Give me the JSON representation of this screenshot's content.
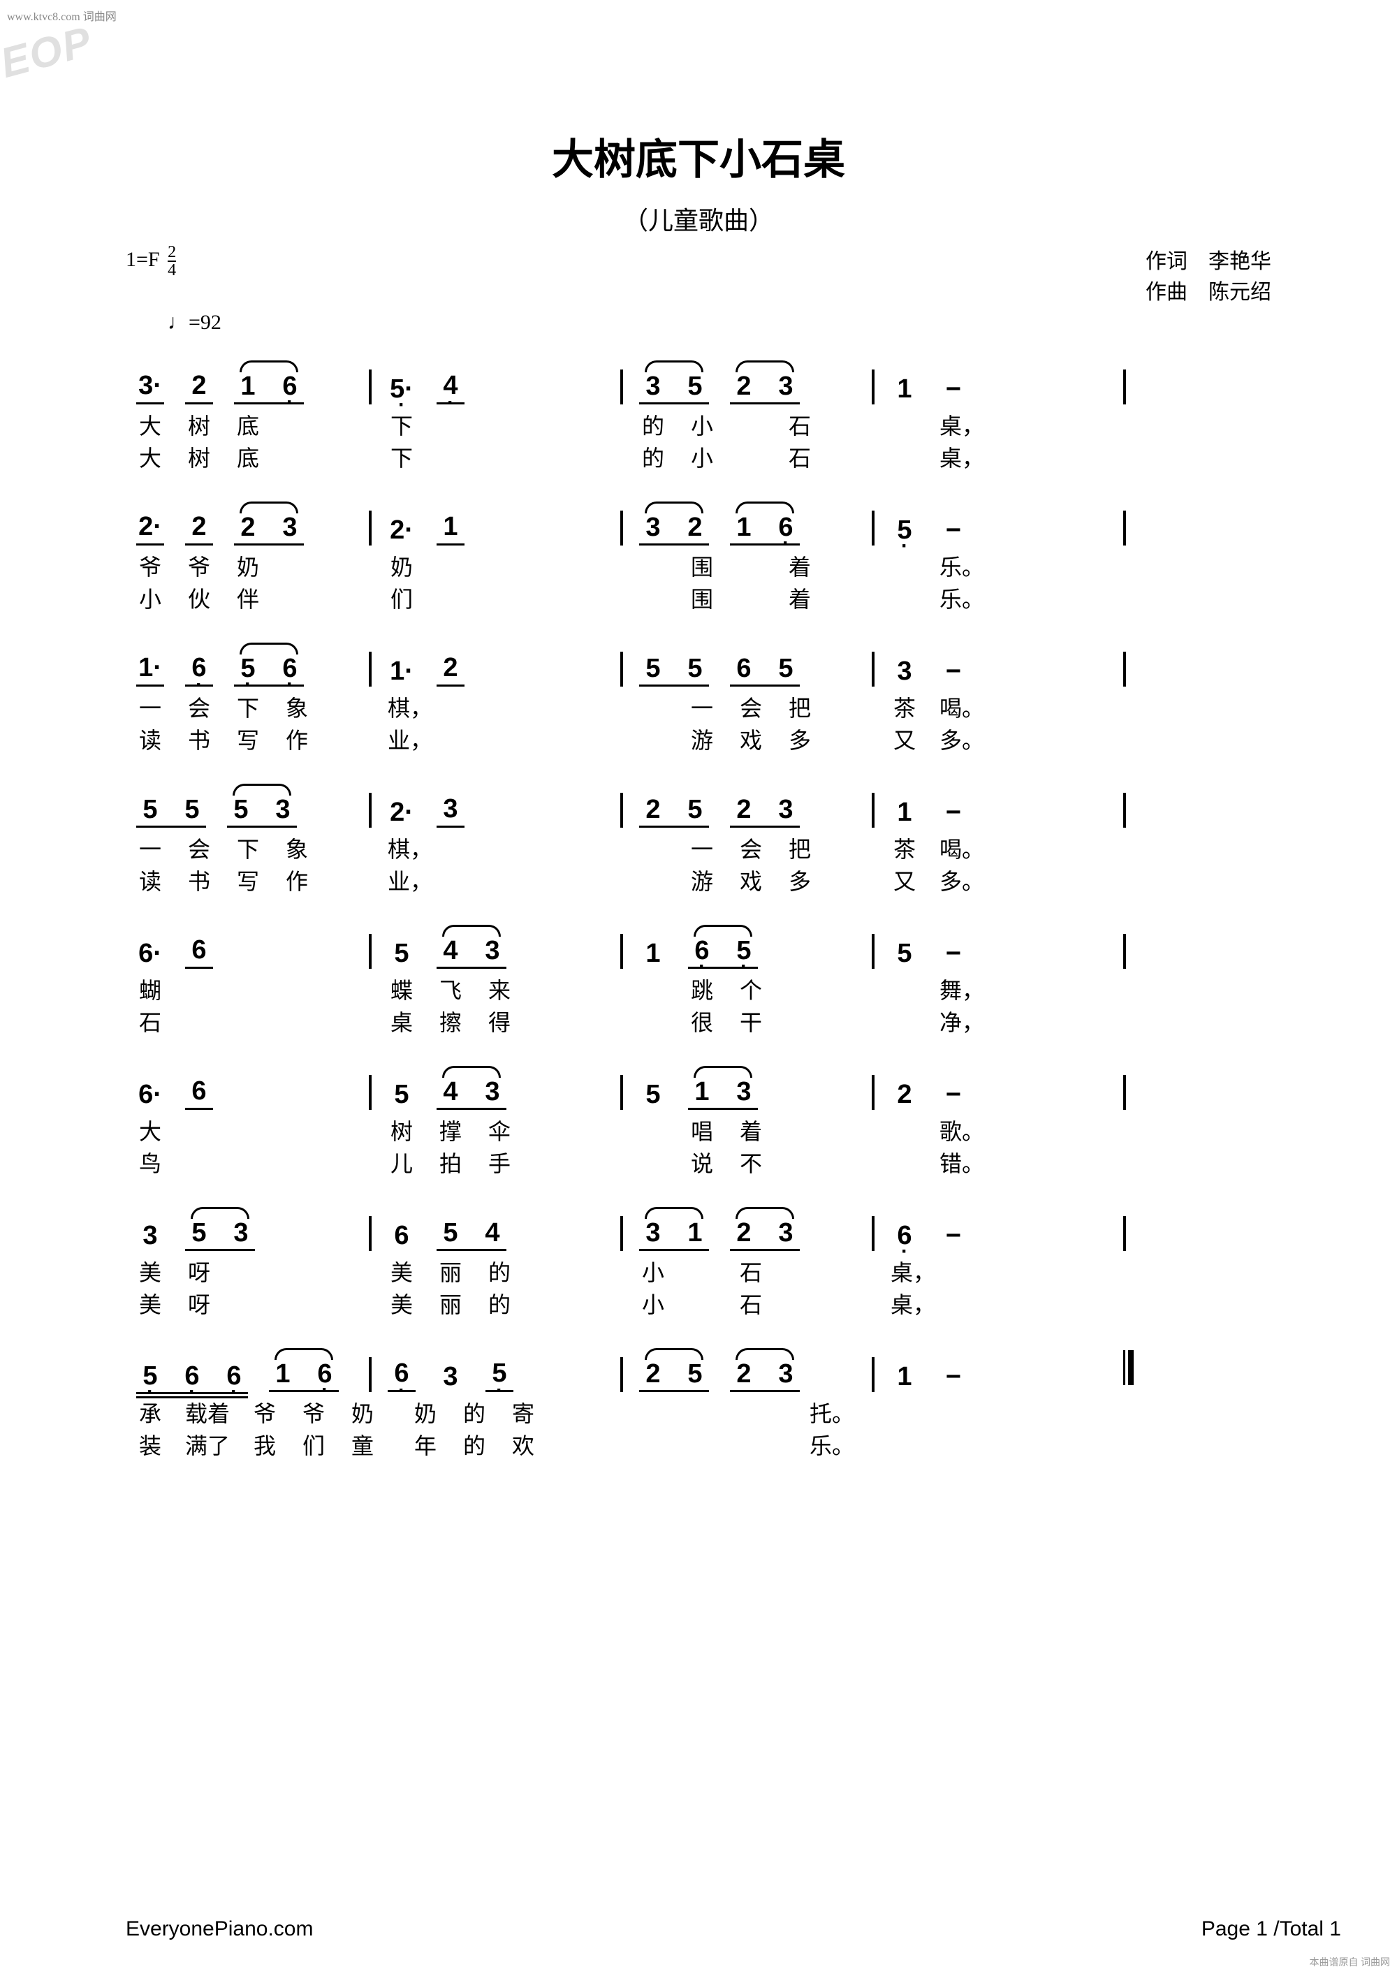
{
  "watermark_top": "www.ktvc8.com 词曲网",
  "eop_watermark": "EOP",
  "title": "大树底下小石桌",
  "subtitle": "（儿童歌曲）",
  "key_sig": "1=F",
  "time_sig_num": "2",
  "time_sig_den": "4",
  "tempo_note": "♩",
  "tempo_eq": "=92",
  "credits": {
    "lyricist_label": "作词",
    "lyricist": "李艳华",
    "composer_label": "作曲",
    "composer": "陈元绍"
  },
  "footer_left": "EveryonePiano.com",
  "footer_right": "Page 1 /Total 1",
  "footer_source": "本曲谱原自 词曲网",
  "lines": [
    {
      "measures": [
        {
          "notes": [
            {
              "t": "3·",
              "u": 1
            },
            {
              "t": "2",
              "u": 1
            },
            {
              "grp": [
                {
                  "t": "1"
                },
                {
                  "t": "6",
                  "db": 1
                }
              ],
              "tie": 1,
              "u": 1
            }
          ],
          "barline": "|"
        },
        {
          "notes": [
            {
              "t": "5·",
              "db": 1
            },
            {
              "t": "4",
              "u": 1,
              "db": 1
            }
          ],
          "barline": "|"
        },
        {
          "notes": [
            {
              "grp": [
                {
                  "t": "3"
                },
                {
                  "t": "5"
                }
              ],
              "tie": 1,
              "u": 1
            },
            {
              "grp": [
                {
                  "t": "2"
                },
                {
                  "t": "3"
                }
              ],
              "tie": 1,
              "u": 1
            }
          ],
          "barline": "|"
        },
        {
          "notes": [
            {
              "t": "1"
            },
            {
              "t": "−"
            }
          ],
          "barline": "|"
        }
      ],
      "lyr1": [
        "大",
        "树",
        "底",
        "",
        "下",
        "",
        "的",
        "小",
        "",
        "石",
        "",
        "桌，"
      ],
      "lyr2": [
        "大",
        "树",
        "底",
        "",
        "下",
        "",
        "的",
        "小",
        "",
        "石",
        "",
        "桌，"
      ]
    },
    {
      "measures": [
        {
          "notes": [
            {
              "t": "2·",
              "u": 1
            },
            {
              "t": "2",
              "u": 1
            },
            {
              "grp": [
                {
                  "t": "2"
                },
                {
                  "t": "3"
                }
              ],
              "tie": 1,
              "u": 1
            }
          ],
          "barline": "|"
        },
        {
          "notes": [
            {
              "t": "2·"
            },
            {
              "t": "1",
              "u": 1
            }
          ],
          "barline": "|"
        },
        {
          "notes": [
            {
              "grp": [
                {
                  "t": "3"
                },
                {
                  "t": "2"
                }
              ],
              "tie": 1,
              "u": 1
            },
            {
              "grp": [
                {
                  "t": "1"
                },
                {
                  "t": "6",
                  "db": 1
                }
              ],
              "tie": 1,
              "u": 1
            }
          ],
          "barline": "|"
        },
        {
          "notes": [
            {
              "t": "5",
              "db": 1
            },
            {
              "t": "−"
            }
          ],
          "barline": "|"
        }
      ],
      "lyr1": [
        "爷",
        "爷",
        "奶",
        "",
        "奶",
        "",
        "",
        "围",
        "",
        "着",
        "",
        "乐。"
      ],
      "lyr2": [
        "小",
        "伙",
        "伴",
        "",
        "们",
        "",
        "",
        "围",
        "",
        "着",
        "",
        "乐。"
      ]
    },
    {
      "measures": [
        {
          "notes": [
            {
              "t": "1·",
              "u": 1
            },
            {
              "t": "6",
              "u": 1,
              "db": 1
            },
            {
              "grp": [
                {
                  "t": "5",
                  "db": 1
                },
                {
                  "t": "6",
                  "db": 1
                }
              ],
              "tie": 1,
              "u": 1
            }
          ],
          "barline": "|"
        },
        {
          "notes": [
            {
              "t": "1·"
            },
            {
              "t": "2",
              "u": 1
            }
          ],
          "barline": "|"
        },
        {
          "notes": [
            {
              "grp": [
                {
                  "t": "5"
                },
                {
                  "t": "5"
                }
              ],
              "u": 1
            },
            {
              "grp": [
                {
                  "t": "6"
                },
                {
                  "t": "5"
                }
              ],
              "u": 1
            }
          ],
          "barline": "|"
        },
        {
          "notes": [
            {
              "t": "3"
            },
            {
              "t": "−"
            }
          ],
          "barline": "|"
        }
      ],
      "lyr1": [
        "一",
        "会",
        "下",
        "象",
        "棋，",
        "",
        "",
        "一",
        "会",
        "把",
        "茶",
        "喝。"
      ],
      "lyr2": [
        "读",
        "书",
        "写",
        "作",
        "业，",
        "",
        "",
        "游",
        "戏",
        "多",
        "又",
        "多。"
      ]
    },
    {
      "measures": [
        {
          "notes": [
            {
              "grp": [
                {
                  "t": "5"
                },
                {
                  "t": "5"
                }
              ],
              "u": 1
            },
            {
              "grp": [
                {
                  "t": "5"
                },
                {
                  "t": "3"
                }
              ],
              "tie": 1,
              "u": 1
            }
          ],
          "barline": "|"
        },
        {
          "notes": [
            {
              "t": "2·"
            },
            {
              "t": "3",
              "u": 1
            },
            {
              "tie_prev": 1
            }
          ],
          "barline": "|"
        },
        {
          "notes": [
            {
              "grp": [
                {
                  "t": "2"
                },
                {
                  "t": "5"
                }
              ],
              "u": 1
            },
            {
              "grp": [
                {
                  "t": "2"
                },
                {
                  "t": "3"
                }
              ],
              "u": 1
            }
          ],
          "barline": "|"
        },
        {
          "notes": [
            {
              "t": "1"
            },
            {
              "t": "−"
            }
          ],
          "barline": "|"
        }
      ],
      "lyr1": [
        "一",
        "会",
        "下",
        "象",
        "棋，",
        "",
        "",
        "一",
        "会",
        "把",
        "茶",
        "喝。"
      ],
      "lyr2": [
        "读",
        "书",
        "写",
        "作",
        "业，",
        "",
        "",
        "游",
        "戏",
        "多",
        "又",
        "多。"
      ]
    },
    {
      "measures": [
        {
          "notes": [
            {
              "t": "6·"
            },
            {
              "t": "6",
              "u": 1
            }
          ],
          "barline": "|"
        },
        {
          "notes": [
            {
              "t": "5"
            },
            {
              "grp": [
                {
                  "t": "4"
                },
                {
                  "t": "3"
                }
              ],
              "tie": 1,
              "u": 1
            }
          ],
          "barline": "|"
        },
        {
          "notes": [
            {
              "t": "1"
            },
            {
              "grp": [
                {
                  "t": "6",
                  "db": 1
                },
                {
                  "t": "5",
                  "db": 1
                }
              ],
              "tie": 1,
              "u": 1
            }
          ],
          "barline": "|"
        },
        {
          "notes": [
            {
              "t": "5"
            },
            {
              "t": "−"
            }
          ],
          "barline": "|"
        }
      ],
      "lyr1": [
        "蝴",
        "",
        "蝶",
        "飞",
        "来",
        "",
        "跳",
        "个",
        "",
        "舞，"
      ],
      "lyr2": [
        "石",
        "",
        "桌",
        "擦",
        "得",
        "",
        "很",
        "干",
        "",
        "净，"
      ]
    },
    {
      "measures": [
        {
          "notes": [
            {
              "t": "6·"
            },
            {
              "t": "6",
              "u": 1
            }
          ],
          "barline": "|"
        },
        {
          "notes": [
            {
              "t": "5"
            },
            {
              "grp": [
                {
                  "t": "4"
                },
                {
                  "t": "3"
                }
              ],
              "tie": 1,
              "u": 1
            }
          ],
          "barline": "|"
        },
        {
          "notes": [
            {
              "t": "5"
            },
            {
              "grp": [
                {
                  "t": "1"
                },
                {
                  "t": "3"
                }
              ],
              "tie": 1,
              "u": 1
            }
          ],
          "barline": "|"
        },
        {
          "notes": [
            {
              "t": "2"
            },
            {
              "t": "−"
            }
          ],
          "barline": "|"
        }
      ],
      "lyr1": [
        "大",
        "",
        "树",
        "撑",
        "伞",
        "",
        "唱",
        "着",
        "",
        "歌。"
      ],
      "lyr2": [
        "鸟",
        "",
        "儿",
        "拍",
        "手",
        "",
        "说",
        "不",
        "",
        "错。"
      ]
    },
    {
      "measures": [
        {
          "notes": [
            {
              "t": "3"
            },
            {
              "grp": [
                {
                  "t": "5"
                },
                {
                  "t": "3"
                }
              ],
              "tie": 1,
              "u": 1
            }
          ],
          "barline": "|"
        },
        {
          "notes": [
            {
              "t": "6"
            },
            {
              "grp": [
                {
                  "t": "5"
                },
                {
                  "t": "4"
                }
              ],
              "u": 1
            }
          ],
          "barline": "|"
        },
        {
          "notes": [
            {
              "grp": [
                {
                  "t": "3"
                },
                {
                  "t": "1"
                }
              ],
              "tie": 1,
              "u": 1
            },
            {
              "grp": [
                {
                  "t": "2"
                },
                {
                  "t": "3"
                }
              ],
              "tie": 1,
              "u": 1
            }
          ],
          "barline": "|"
        },
        {
          "notes": [
            {
              "t": "6",
              "db": 1
            },
            {
              "t": "−"
            }
          ],
          "barline": "|"
        }
      ],
      "lyr1": [
        "美",
        "呀",
        "",
        "美",
        "丽",
        "的",
        "小",
        "",
        "石",
        "",
        "桌，"
      ],
      "lyr2": [
        "美",
        "呀",
        "",
        "美",
        "丽",
        "的",
        "小",
        "",
        "石",
        "",
        "桌，"
      ]
    },
    {
      "measures": [
        {
          "notes": [
            {
              "grp": [
                {
                  "t": "5",
                  "db": 1
                },
                {
                  "t": "6",
                  "db": 1
                },
                {
                  "t": "6",
                  "db": 1
                }
              ],
              "u": 2
            },
            {
              "grp": [
                {
                  "t": "1"
                },
                {
                  "t": "6",
                  "db": 1
                }
              ],
              "tie": 1,
              "u": 1
            }
          ],
          "barline": "|"
        },
        {
          "notes": [
            {
              "t": "6",
              "u": 1,
              "db": 1
            },
            {
              "t": "3"
            },
            {
              "t": "5",
              "u": 1,
              "db": 1
            }
          ],
          "barline": "|"
        },
        {
          "notes": [
            {
              "grp": [
                {
                  "t": "2"
                },
                {
                  "t": "5"
                }
              ],
              "tie": 1,
              "u": 1
            },
            {
              "grp": [
                {
                  "t": "2"
                },
                {
                  "t": "3"
                }
              ],
              "tie": 1,
              "u": 1
            }
          ],
          "barline": "|"
        },
        {
          "notes": [
            {
              "t": "1"
            },
            {
              "t": "−"
            }
          ],
          "barline": "||"
        }
      ],
      "lyr1": [
        "承",
        "载着",
        "爷",
        "爷",
        "奶",
        "奶",
        "的",
        "寄",
        "",
        "",
        "",
        "托。"
      ],
      "lyr2": [
        "装",
        "满了",
        "我",
        "们",
        "童",
        "年",
        "的",
        "欢",
        "",
        "",
        "",
        "乐。"
      ]
    }
  ]
}
